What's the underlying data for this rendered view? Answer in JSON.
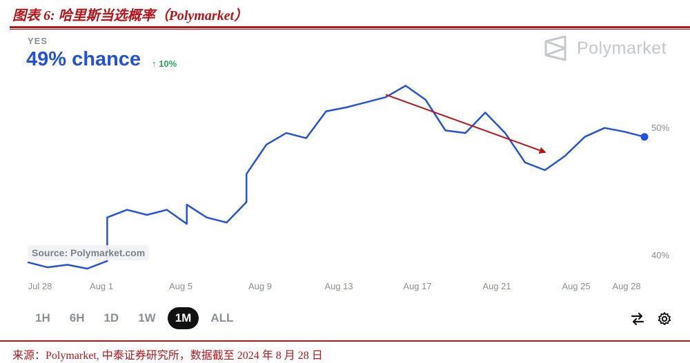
{
  "figure": {
    "title": "图表 6:   哈里斯当选概率（Polymarket）",
    "source_note": "来源：Polymarket, 中泰证券研究所，数据截至 2024 年 8 月 28 日"
  },
  "market": {
    "outcome_label": "YES",
    "chance_text": "49% chance",
    "change_text": "↑ 10%",
    "brand_name": "Polymarket",
    "source_badge": "Source: Polymarket.com"
  },
  "colors": {
    "accent": "#2352d9",
    "up": "#27a35a",
    "report_red": "#b5151b",
    "annotation_arrow": "#b5151b"
  },
  "timeframes": [
    {
      "label": "1H",
      "active": false
    },
    {
      "label": "6H",
      "active": false
    },
    {
      "label": "1D",
      "active": false
    },
    {
      "label": "1W",
      "active": false
    },
    {
      "label": "1M",
      "active": true
    },
    {
      "label": "ALL",
      "active": false
    }
  ],
  "controls": {
    "swap_icon": "swap-arrows-icon",
    "settings_icon": "gear-icon"
  },
  "chart_data": {
    "type": "line",
    "x_unit": "2024 date",
    "x_ticks": [
      "Jul 28",
      "Aug 1",
      "Aug 5",
      "Aug 9",
      "Aug 13",
      "Aug 17",
      "Aug 21",
      "Aug 25",
      "Aug 28"
    ],
    "y_ticks": [
      "50%",
      "40%"
    ],
    "y_axis_side": "right",
    "grid": false,
    "ylim": [
      39,
      53
    ],
    "xlim": [
      "2024-07-28",
      "2024-08-28"
    ],
    "series": [
      {
        "points": [
          [
            "2024-07-28",
            39.5
          ],
          [
            "2024-07-29",
            39.1
          ],
          [
            "2024-07-30",
            39.3
          ],
          [
            "2024-07-31",
            39.0
          ],
          [
            "2024-08-01",
            39.6
          ],
          [
            "2024-08-01",
            43.0
          ],
          [
            "2024-08-02",
            43.6
          ],
          [
            "2024-08-03",
            43.2
          ],
          [
            "2024-08-04",
            43.6
          ],
          [
            "2024-08-05",
            42.5
          ],
          [
            "2024-08-05",
            44.0
          ],
          [
            "2024-08-06",
            43.0
          ],
          [
            "2024-08-07",
            42.6
          ],
          [
            "2024-08-08",
            44.2
          ],
          [
            "2024-08-08",
            46.4
          ],
          [
            "2024-08-09",
            48.7
          ],
          [
            "2024-08-10",
            49.6
          ],
          [
            "2024-08-11",
            49.2
          ],
          [
            "2024-08-12",
            51.3
          ],
          [
            "2024-08-13",
            51.6
          ],
          [
            "2024-08-14",
            52.0
          ],
          [
            "2024-08-15",
            52.4
          ],
          [
            "2024-08-16",
            53.3
          ],
          [
            "2024-08-17",
            52.2
          ],
          [
            "2024-08-18",
            49.8
          ],
          [
            "2024-08-19",
            49.6
          ],
          [
            "2024-08-20",
            51.2
          ],
          [
            "2024-08-21",
            49.6
          ],
          [
            "2024-08-22",
            47.3
          ],
          [
            "2024-08-23",
            46.7
          ],
          [
            "2024-08-24",
            47.8
          ],
          [
            "2024-08-25",
            49.3
          ],
          [
            "2024-08-26",
            50.0
          ],
          [
            "2024-08-27",
            49.7
          ],
          [
            "2024-08-28",
            49.3
          ]
        ]
      }
    ],
    "last_point_marker": true,
    "annotations": [
      {
        "type": "arrow",
        "from": [
          "2024-08-15",
          52.6
        ],
        "to": [
          "2024-08-23",
          48.1
        ],
        "color": "#b5151b"
      }
    ]
  }
}
